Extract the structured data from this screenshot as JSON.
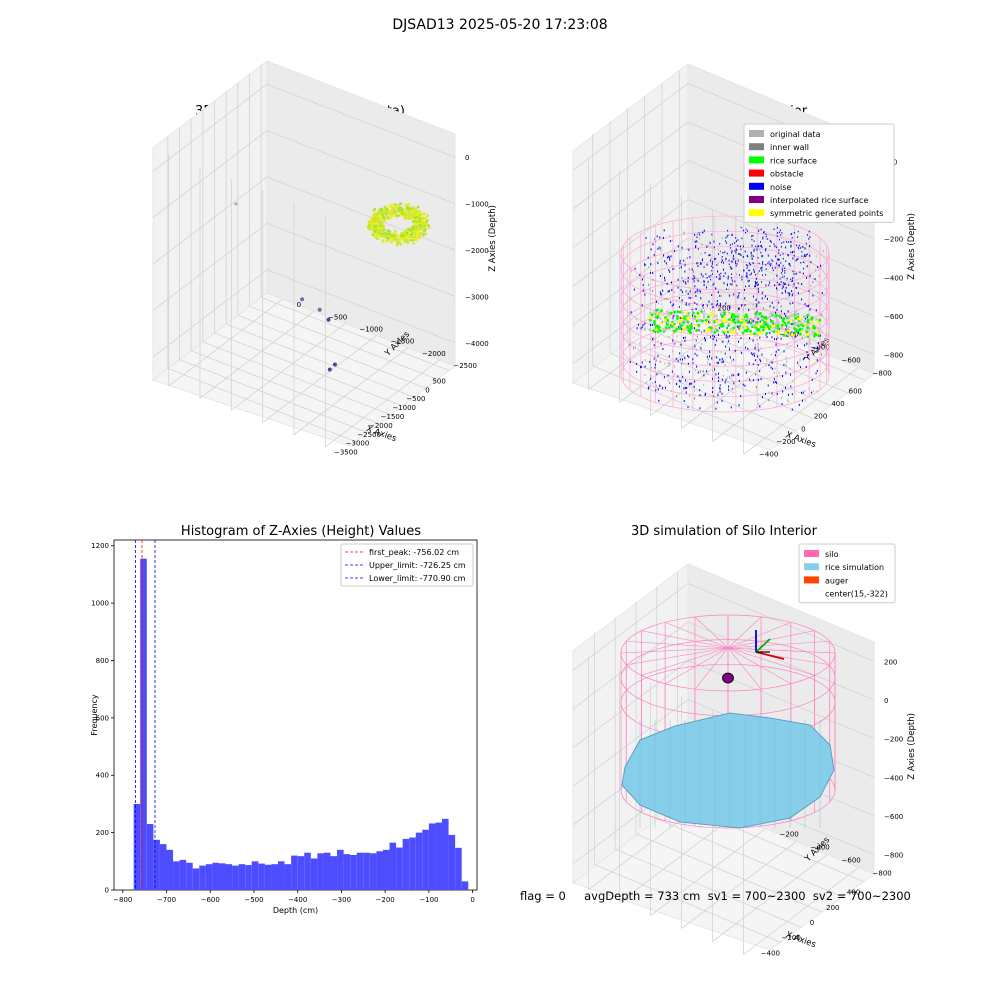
{
  "figure": {
    "suptitle": "DJSAD13 2025-05-20 17:23:08",
    "footer": "flag = 0     avgDepth = 733 cm  sv1 = 700~2300  sv2 = 700~2300"
  },
  "colors": {
    "original": "#b0b0b0",
    "inner_wall": "#808080",
    "rice_surface": "#00ff00",
    "obstacle": "#ff0000",
    "noise": "#0000ff",
    "interpolated": "#800080",
    "symmetric": "#ffff00",
    "silo": "#ff69b4",
    "rice_sim": "#87ceeb",
    "auger": "#ff4500",
    "hist_bar": "#4d4dff"
  },
  "chart_data": [
    {
      "type": "scatter",
      "panel": "3d_raw",
      "title": "3D Plot of Silo Interior(row data)",
      "xlabel": "X Axies",
      "ylabel": "Y Axies",
      "zlabel": "Z Axies (Depth)",
      "x_ticks": [
        "−3500",
        "−3000",
        "−2500",
        "−2000",
        "−1500",
        "−1000",
        "−500",
        "0",
        "500"
      ],
      "y_ticks": [
        "0",
        "−500",
        "−1000",
        "−1500",
        "−2000",
        "−2500"
      ],
      "z_ticks": [
        "0",
        "−1000",
        "−2000",
        "−3000",
        "−4000"
      ],
      "xlim": [
        -3500,
        700
      ],
      "ylim": [
        -2700,
        300
      ],
      "zlim": [
        -4500,
        200
      ]
    },
    {
      "type": "scatter",
      "panel": "3d_classify",
      "title": "3D classify of Silo Interior",
      "xlabel": "X Axies",
      "ylabel": "Y Axies",
      "zlabel": "Z Axies (Depth)",
      "x_ticks": [
        "−400",
        "−200",
        "0",
        "200",
        "400",
        "600"
      ],
      "y_ticks": [
        "200",
        "0",
        "−200",
        "−400",
        "−600",
        "−800"
      ],
      "z_ticks": [
        "200",
        "0",
        "−200",
        "−400",
        "−600",
        "−800"
      ],
      "legend": [
        "original data",
        "inner wall",
        "rice surface",
        "obstacle",
        "noise",
        "interpolated rice surface",
        "symmetric generated points"
      ],
      "legend_loc": "upper right"
    },
    {
      "type": "bar",
      "panel": "histogram",
      "title": "Histogram of Z-Axies (Height) Values",
      "xlabel": "Depth (cm)",
      "ylabel": "Frequency",
      "xlim": [
        -820,
        10
      ],
      "ylim": [
        0,
        1220
      ],
      "x_ticks": [
        -800,
        -700,
        -600,
        -500,
        -400,
        -300,
        -200,
        -100,
        0
      ],
      "y_ticks": [
        0,
        200,
        400,
        600,
        800,
        1000,
        1200
      ],
      "bin_start": -775,
      "bin_width": 15,
      "values": [
        300,
        1155,
        230,
        175,
        160,
        140,
        100,
        105,
        95,
        75,
        85,
        90,
        95,
        93,
        90,
        85,
        90,
        87,
        100,
        92,
        88,
        90,
        100,
        90,
        120,
        118,
        130,
        110,
        128,
        130,
        118,
        140,
        125,
        122,
        130,
        130,
        128,
        135,
        140,
        165,
        148,
        178,
        183,
        200,
        210,
        232,
        235,
        248,
        192,
        147,
        30
      ],
      "lines": [
        {
          "label": "first_peak: -756.02 cm",
          "x": -756.02,
          "color": "#ff0000"
        },
        {
          "label": "Upper_limit: -726.25 cm",
          "x": -726.25,
          "color": "#0000ff"
        },
        {
          "label": "Lower_limit: -770.90 cm",
          "x": -770.9,
          "color": "#0000ff"
        }
      ],
      "legend_loc": "upper right"
    },
    {
      "type": "scatter",
      "panel": "3d_simulation",
      "title": "3D simulation of Silo Interior",
      "xlabel": "X Axies",
      "ylabel": "Y Axies",
      "zlabel": "Z Axies (Depth)",
      "x_ticks": [
        "−400",
        "−200",
        "0",
        "200",
        "400"
      ],
      "y_ticks": [
        "200",
        "0",
        "−200",
        "−400",
        "−600",
        "−800"
      ],
      "z_ticks": [
        "200",
        "0",
        "−200",
        "−400",
        "−600",
        "−800"
      ],
      "legend": [
        "silo",
        "rice simulation",
        "auger",
        "center(15,-322)"
      ],
      "legend_loc": "upper right"
    }
  ]
}
